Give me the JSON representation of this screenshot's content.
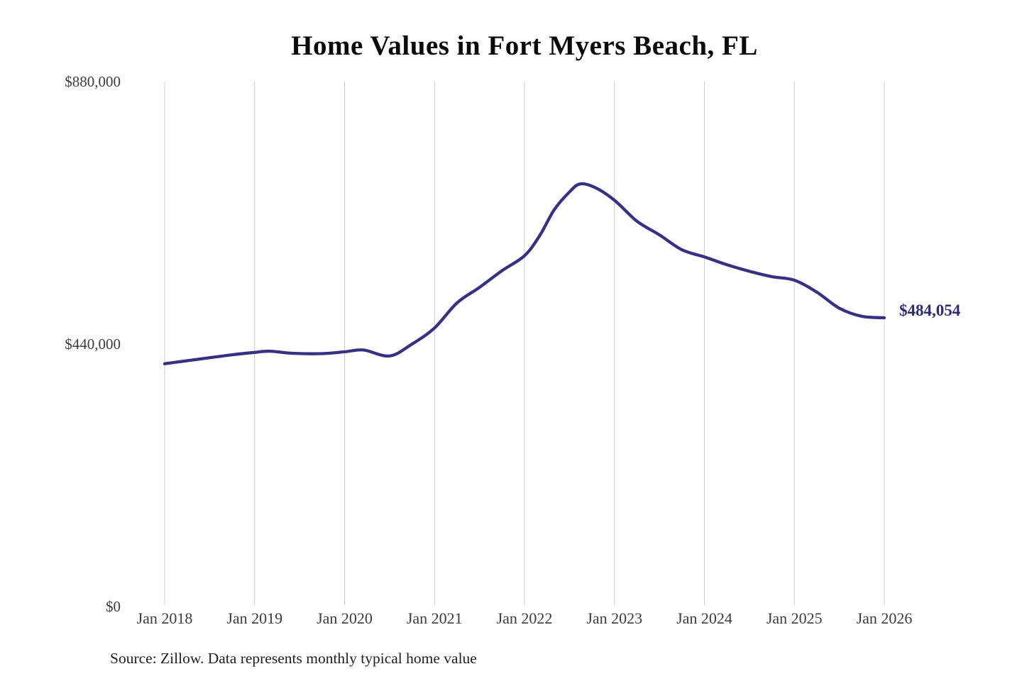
{
  "title": "Home Values in Fort Myers Beach, FL",
  "source": "Source: Zillow. Data represents monthly typical home value",
  "annotation": {
    "end_value_label": "$484,054"
  },
  "colors": {
    "background": "#ffffff",
    "line": "#35308a",
    "grid": "#cccccc",
    "title_text": "#0b0b0b",
    "axis_text": "#3c3c3c",
    "source_text": "#1f1f1f",
    "annotation_text": "#2e2a80"
  },
  "y_axis": {
    "labels": [
      {
        "label": "$880,000",
        "value": 880000
      },
      {
        "label": "$440,000",
        "value": 440000
      },
      {
        "label": "$0",
        "value": 0
      }
    ]
  },
  "x_axis": {
    "labels": [
      {
        "label": "Jan 2018",
        "t": 2018
      },
      {
        "label": "Jan 2019",
        "t": 2019
      },
      {
        "label": "Jan 2020",
        "t": 2020
      },
      {
        "label": "Jan 2021",
        "t": 2021
      },
      {
        "label": "Jan 2022",
        "t": 2022
      },
      {
        "label": "Jan 2023",
        "t": 2023
      },
      {
        "label": "Jan 2024",
        "t": 2024
      },
      {
        "label": "Jan 2025",
        "t": 2025
      },
      {
        "label": "Jan 2026",
        "t": 2026
      }
    ]
  },
  "chart_data": {
    "type": "line",
    "title": "Home Values in Fort Myers Beach, FL",
    "series_name": "Typical home value (monthly, Zillow)",
    "xlabel": "",
    "ylabel": "",
    "x_tick_labels": [
      "Jan 2018",
      "Jan 2019",
      "Jan 2020",
      "Jan 2021",
      "Jan 2022",
      "Jan 2023",
      "Jan 2024",
      "Jan 2025",
      "Jan 2026"
    ],
    "y_tick_labels": [
      "$0",
      "$440,000",
      "$880,000"
    ],
    "ylim": [
      0,
      880000
    ],
    "xlim_years": [
      2018,
      2026
    ],
    "grid": "vertical-only",
    "legend": "none",
    "end_value": 484054,
    "end_value_label": "$484,054",
    "peak": {
      "date": "Aug 2022",
      "value": 708500
    },
    "points": [
      {
        "date": "Jan 2018",
        "t": 2018.0,
        "value": 407000
      },
      {
        "date": "Apr 2018",
        "t": 2018.25,
        "value": 412000
      },
      {
        "date": "Jul 2018",
        "t": 2018.5,
        "value": 417000
      },
      {
        "date": "Oct 2018",
        "t": 2018.75,
        "value": 422000
      },
      {
        "date": "Jan 2019",
        "t": 2019.0,
        "value": 426000
      },
      {
        "date": "Mar 2019",
        "t": 2019.17,
        "value": 428000
      },
      {
        "date": "Jun 2019",
        "t": 2019.42,
        "value": 424500
      },
      {
        "date": "Oct 2019",
        "t": 2019.75,
        "value": 424000
      },
      {
        "date": "Jan 2020",
        "t": 2020.0,
        "value": 427000
      },
      {
        "date": "Mar 2020",
        "t": 2020.21,
        "value": 430000
      },
      {
        "date": "Jul 2020",
        "t": 2020.5,
        "value": 420000
      },
      {
        "date": "Oct 2020",
        "t": 2020.75,
        "value": 440000
      },
      {
        "date": "Jan 2021",
        "t": 2021.0,
        "value": 467000
      },
      {
        "date": "Apr 2021",
        "t": 2021.25,
        "value": 509000
      },
      {
        "date": "Jul 2021",
        "t": 2021.5,
        "value": 535000
      },
      {
        "date": "Oct 2021",
        "t": 2021.75,
        "value": 563000
      },
      {
        "date": "Jan 2022",
        "t": 2022.0,
        "value": 588000
      },
      {
        "date": "Mar 2022",
        "t": 2022.17,
        "value": 622000
      },
      {
        "date": "May 2022",
        "t": 2022.33,
        "value": 665000
      },
      {
        "date": "Jul 2022",
        "t": 2022.5,
        "value": 695000
      },
      {
        "date": "Aug 2022",
        "t": 2022.62,
        "value": 708500
      },
      {
        "date": "Oct 2022",
        "t": 2022.79,
        "value": 702000
      },
      {
        "date": "Jan 2023",
        "t": 2023.0,
        "value": 681000
      },
      {
        "date": "Apr 2023",
        "t": 2023.25,
        "value": 646000
      },
      {
        "date": "Jul 2023",
        "t": 2023.5,
        "value": 623000
      },
      {
        "date": "Oct 2023",
        "t": 2023.75,
        "value": 598000
      },
      {
        "date": "Jan 2024",
        "t": 2024.0,
        "value": 586000
      },
      {
        "date": "Apr 2024",
        "t": 2024.25,
        "value": 573000
      },
      {
        "date": "Jul 2024",
        "t": 2024.5,
        "value": 562000
      },
      {
        "date": "Oct 2024",
        "t": 2024.75,
        "value": 553000
      },
      {
        "date": "Jan 2025",
        "t": 2025.0,
        "value": 547000
      },
      {
        "date": "Apr 2025",
        "t": 2025.25,
        "value": 527000
      },
      {
        "date": "Jul 2025",
        "t": 2025.5,
        "value": 500000
      },
      {
        "date": "Oct 2025",
        "t": 2025.75,
        "value": 486500
      },
      {
        "date": "Jan 2026",
        "t": 2026.0,
        "value": 484054
      }
    ]
  }
}
